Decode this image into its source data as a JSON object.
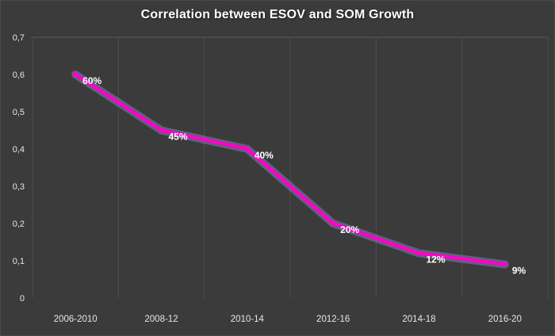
{
  "chart_data": {
    "type": "line",
    "title": "Correlation between ESOV and SOM Growth",
    "categories": [
      "2006-2010",
      "2008-12",
      "2010-14",
      "2012-16",
      "2014-18",
      "2016-20"
    ],
    "values": [
      0.6,
      0.45,
      0.4,
      0.2,
      0.12,
      0.09
    ],
    "data_labels": [
      "60%",
      "45%",
      "40%",
      "20%",
      "12%",
      "9%"
    ],
    "ylim": [
      0,
      0.7
    ],
    "ytick_step": 0.1,
    "ytick_labels": [
      "0,7",
      "0,6",
      "0,5",
      "0,4",
      "0,3",
      "0,2",
      "0,1",
      "0"
    ],
    "grid": "vertical",
    "legend": "none",
    "line_color": "#ff00cc",
    "glow_color": "#9bc7ff",
    "marker_color": "#ff00cc",
    "data_label_color": "#ffffff",
    "background_color": "#3b3b3b",
    "gridline_color": "#4d4d4d",
    "top_gridline_color": "#5a5a5a",
    "axis_text_color": "#e6e6e6"
  }
}
